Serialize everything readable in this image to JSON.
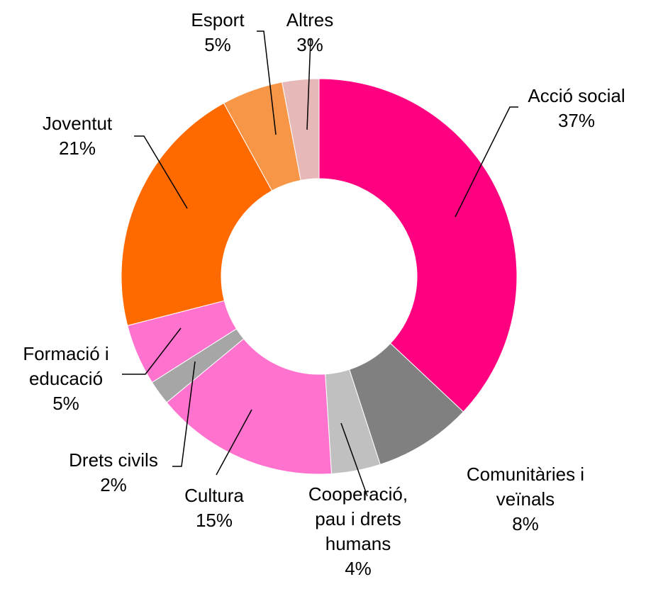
{
  "chart_data": {
    "type": "pie",
    "variant": "donut",
    "title": "",
    "slices": [
      {
        "name": "Acció social",
        "value": 37,
        "label": "37%",
        "color": "#FF0080"
      },
      {
        "name": "Comunitàries i veïnals",
        "value": 8,
        "label": "8%",
        "color": "#808080"
      },
      {
        "name": "Cooperació, pau i drets humans",
        "value": 4,
        "label": "4%",
        "color": "#C0C0C0"
      },
      {
        "name": "Cultura",
        "value": 15,
        "label": "15%",
        "color": "#FF73CF"
      },
      {
        "name": "Drets civils",
        "value": 2,
        "label": "2%",
        "color": "#A6A6A6"
      },
      {
        "name": "Formació i educació",
        "value": 5,
        "label": "5%",
        "color": "#FF73CF"
      },
      {
        "name": "Joventut",
        "value": 21,
        "label": "21%",
        "color": "#FF6A00"
      },
      {
        "name": "Esport",
        "value": 5,
        "label": "5%",
        "color": "#F79646"
      },
      {
        "name": "Altres",
        "value": 3,
        "label": "3%",
        "color": "#E6B9B8"
      }
    ],
    "labels": [
      {
        "lines": [
          "Acció social",
          "37%"
        ]
      },
      {
        "lines": [
          "Comunitàries i",
          "veïnals",
          "8%"
        ]
      },
      {
        "lines": [
          "Cooperació,",
          "pau i drets",
          "humans",
          "4%"
        ]
      },
      {
        "lines": [
          "Cultura",
          "15%"
        ]
      },
      {
        "lines": [
          "Drets civils",
          "2%"
        ]
      },
      {
        "lines": [
          "Formació i",
          "educació",
          "5%"
        ]
      },
      {
        "lines": [
          "Joventut",
          "21%"
        ]
      },
      {
        "lines": [
          "Esport",
          "5%"
        ]
      },
      {
        "lines": [
          "Altres",
          "3%"
        ]
      }
    ],
    "legend": "none"
  }
}
